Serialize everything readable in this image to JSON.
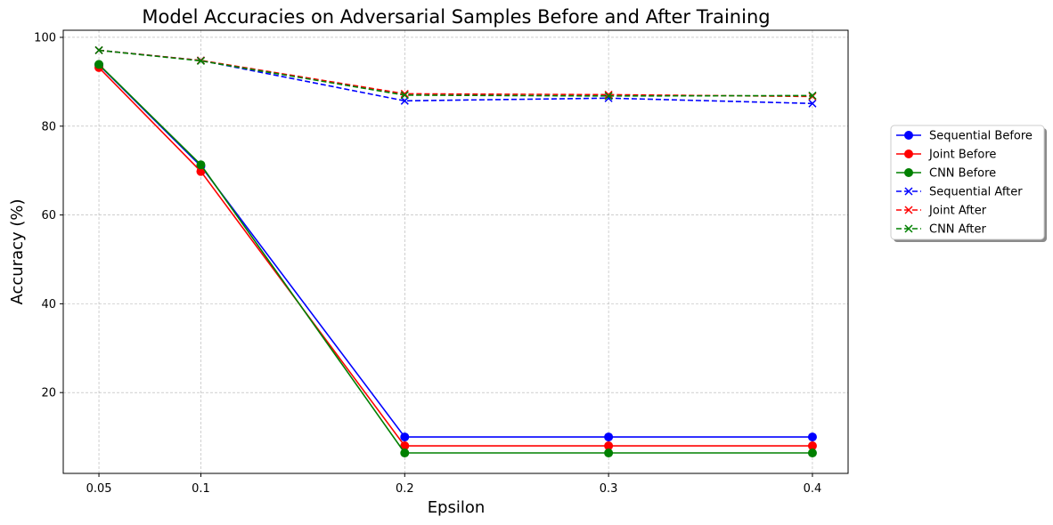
{
  "chart_data": {
    "type": "line",
    "title": "Model Accuracies on Adversarial Samples Before and After Training",
    "xlabel": "Epsilon",
    "ylabel": "Accuracy (%)",
    "x": [
      0.05,
      0.1,
      0.2,
      0.3,
      0.4
    ],
    "x_tick_labels": [
      "0.05",
      "0.1",
      "0.2",
      "0.3",
      "0.4"
    ],
    "xlim": [
      0.0325,
      0.4175
    ],
    "ylim": [
      1.8,
      101.6
    ],
    "y_ticks": [
      20,
      40,
      60,
      80,
      100
    ],
    "grid": true,
    "legend_position": "outside-right",
    "series": [
      {
        "name": "Sequential Before",
        "values": [
          93.8,
          71.0,
          10.0,
          10.0,
          10.0
        ],
        "color": "#0000ff",
        "linestyle": "solid",
        "marker": "circle"
      },
      {
        "name": "Joint Before",
        "values": [
          93.2,
          69.8,
          8.0,
          8.0,
          8.0
        ],
        "color": "#ff0000",
        "linestyle": "solid",
        "marker": "circle"
      },
      {
        "name": "CNN Before",
        "values": [
          93.9,
          71.3,
          6.4,
          6.4,
          6.4
        ],
        "color": "#008000",
        "linestyle": "solid",
        "marker": "circle"
      },
      {
        "name": "Sequential After",
        "values": [
          97.1,
          94.8,
          85.7,
          86.3,
          85.1
        ],
        "color": "#0000ff",
        "linestyle": "dashed",
        "marker": "x"
      },
      {
        "name": "Joint After",
        "values": [
          97.1,
          94.8,
          87.3,
          87.1,
          86.7
        ],
        "color": "#ff0000",
        "linestyle": "dashed",
        "marker": "x"
      },
      {
        "name": "CNN After",
        "values": [
          97.1,
          94.7,
          87.0,
          86.8,
          86.9
        ],
        "color": "#008000",
        "linestyle": "dashed",
        "marker": "x"
      }
    ]
  }
}
